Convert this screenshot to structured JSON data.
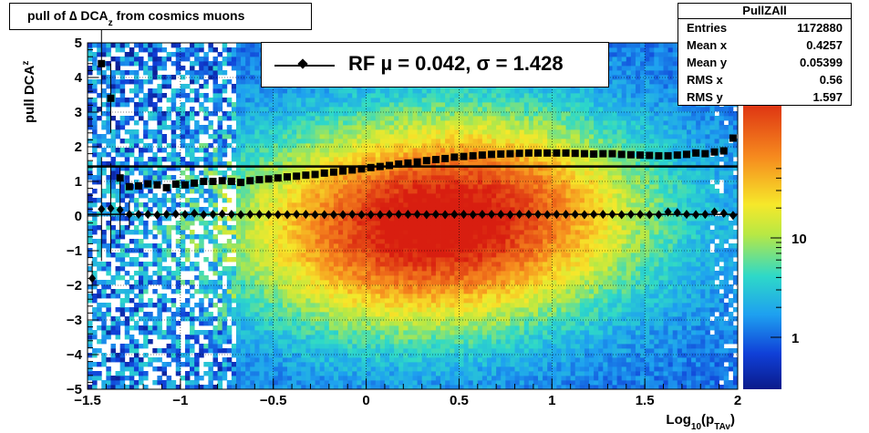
{
  "title": {
    "main": "pull of ∆ DCA",
    "sub": "z",
    "rest": " from cosmics muons"
  },
  "stats": {
    "name": "PullZAll",
    "rows": [
      {
        "label": "Entries",
        "value": "1172880"
      },
      {
        "label": "Mean x",
        "value": "0.4257"
      },
      {
        "label": "Mean y",
        "value": "0.05399"
      },
      {
        "label": "RMS x",
        "value": "0.56"
      },
      {
        "label": "RMS y",
        "value": "1.597"
      }
    ]
  },
  "legend": {
    "text": "RF µ =  0.042, σ =   1.428"
  },
  "xlabel": {
    "pre": "Log",
    "sub1": "10",
    "mid": "(p",
    "sub2": "TAv",
    "post": ")"
  },
  "ylabel": {
    "pre": "pull DCA",
    "sub": "z"
  },
  "chart_data": {
    "type": "heatmap",
    "xlim": [
      -1.5,
      2
    ],
    "ylim": [
      -5,
      5
    ],
    "xticks": [
      "−1.5",
      "−1",
      "−0.5",
      "0",
      "0.5",
      "1",
      "1.5",
      "2"
    ],
    "xtick_values": [
      -1.5,
      -1,
      -0.5,
      0,
      0.5,
      1,
      1.5,
      2
    ],
    "yticks": [
      "−5",
      "−4",
      "−3",
      "−2",
      "−1",
      "0",
      "1",
      "2",
      "3",
      "4",
      "5"
    ],
    "ytick_values": [
      -5,
      -4,
      -3,
      -2,
      -1,
      0,
      1,
      2,
      3,
      4,
      5
    ],
    "z_scale": "log",
    "zticks": [
      "1",
      "10"
    ],
    "ztick_values": [
      1,
      10
    ],
    "grid": true,
    "reference_line_y": 1.43,
    "series": [
      {
        "name": "mean",
        "marker": "diamond",
        "x": [
          -1.475,
          -1.425,
          -1.375,
          -1.325,
          -1.275,
          -1.225,
          -1.175,
          -1.125,
          -1.075,
          -1.025,
          -0.975,
          -0.925,
          -0.875,
          -0.825,
          -0.775,
          -0.725,
          -0.675,
          -0.625,
          -0.575,
          -0.525,
          -0.475,
          -0.425,
          -0.375,
          -0.325,
          -0.275,
          -0.225,
          -0.175,
          -0.125,
          -0.075,
          -0.025,
          0.025,
          0.075,
          0.125,
          0.175,
          0.225,
          0.275,
          0.325,
          0.375,
          0.425,
          0.475,
          0.525,
          0.575,
          0.625,
          0.675,
          0.725,
          0.775,
          0.825,
          0.875,
          0.925,
          0.975,
          1.025,
          1.075,
          1.125,
          1.175,
          1.225,
          1.275,
          1.325,
          1.375,
          1.425,
          1.475,
          1.525,
          1.575,
          1.625,
          1.675,
          1.725,
          1.775,
          1.825,
          1.875,
          1.925,
          1.975
        ],
        "y": [
          -1.8,
          0.2,
          0.22,
          0.18,
          0.05,
          0.05,
          0.05,
          0.03,
          0.05,
          0.06,
          0.05,
          0.08,
          0.04,
          0.05,
          0.06,
          0.05,
          0.04,
          0.05,
          0.05,
          0.04,
          0.04,
          0.04,
          0.05,
          0.05,
          0.04,
          0.04,
          0.04,
          0.04,
          0.05,
          0.04,
          0.04,
          0.04,
          0.05,
          0.05,
          0.05,
          0.05,
          0.04,
          0.05,
          0.04,
          0.05,
          0.05,
          0.04,
          0.05,
          0.05,
          0.05,
          0.04,
          0.05,
          0.05,
          0.05,
          0.04,
          0.05,
          0.05,
          0.05,
          0.04,
          0.05,
          0.05,
          0.05,
          0.04,
          0.05,
          0.05,
          0.04,
          0.04,
          0.12,
          0.1,
          0.05,
          0.04,
          0.05,
          0.12,
          0.08,
          0.02
        ],
        "yerr": [
          0.5,
          1.5,
          1.3,
          0.8,
          0.4,
          0.1,
          0.05,
          0.03,
          0.03,
          0.02,
          0.02,
          0.02,
          0.02,
          0.02,
          0.02,
          0.02,
          0.02,
          0.02,
          0.02,
          0.02,
          0.02,
          0.02,
          0.02,
          0.02,
          0.02,
          0.02,
          0.02,
          0.02,
          0.02,
          0.02,
          0.02,
          0.02,
          0.02,
          0.02,
          0.02,
          0.02,
          0.02,
          0.02,
          0.02,
          0.02,
          0.02,
          0.02,
          0.02,
          0.02,
          0.02,
          0.02,
          0.02,
          0.02,
          0.02,
          0.02,
          0.02,
          0.02,
          0.02,
          0.02,
          0.02,
          0.02,
          0.02,
          0.02,
          0.02,
          0.02,
          0.02,
          0.02,
          0.02,
          0.02,
          0.02,
          0.02,
          0.02,
          0.02,
          0.02,
          0.02
        ]
      },
      {
        "name": "sigma",
        "marker": "square",
        "x": [
          -1.425,
          -1.375,
          -1.325,
          -1.275,
          -1.225,
          -1.175,
          -1.125,
          -1.075,
          -1.025,
          -0.975,
          -0.925,
          -0.875,
          -0.825,
          -0.775,
          -0.725,
          -0.675,
          -0.625,
          -0.575,
          -0.525,
          -0.475,
          -0.425,
          -0.375,
          -0.325,
          -0.275,
          -0.225,
          -0.175,
          -0.125,
          -0.075,
          -0.025,
          0.025,
          0.075,
          0.125,
          0.175,
          0.225,
          0.275,
          0.325,
          0.375,
          0.425,
          0.475,
          0.525,
          0.575,
          0.625,
          0.675,
          0.725,
          0.775,
          0.825,
          0.875,
          0.925,
          0.975,
          1.025,
          1.075,
          1.125,
          1.175,
          1.225,
          1.275,
          1.325,
          1.375,
          1.425,
          1.475,
          1.525,
          1.575,
          1.625,
          1.675,
          1.725,
          1.775,
          1.825,
          1.875,
          1.925,
          1.975
        ],
        "y": [
          4.4,
          3.4,
          1.1,
          0.85,
          0.87,
          0.93,
          0.9,
          0.82,
          0.92,
          0.9,
          0.95,
          1.0,
          1.0,
          1.02,
          1.0,
          0.97,
          1.02,
          1.05,
          1.07,
          1.1,
          1.13,
          1.15,
          1.18,
          1.2,
          1.24,
          1.27,
          1.3,
          1.33,
          1.36,
          1.4,
          1.43,
          1.46,
          1.5,
          1.53,
          1.56,
          1.6,
          1.63,
          1.66,
          1.7,
          1.72,
          1.74,
          1.76,
          1.78,
          1.79,
          1.8,
          1.81,
          1.82,
          1.82,
          1.82,
          1.82,
          1.82,
          1.81,
          1.8,
          1.79,
          1.8,
          1.8,
          1.78,
          1.77,
          1.76,
          1.75,
          1.74,
          1.74,
          1.76,
          1.78,
          1.82,
          1.8,
          1.85,
          1.88,
          2.25
        ],
        "yerr": [
          1.5,
          1.0,
          0.3,
          0.1,
          0.05,
          0.03,
          0.03,
          0.02,
          0.02,
          0.02,
          0.02,
          0.02,
          0.02,
          0.02,
          0.02,
          0.02,
          0.02,
          0.02,
          0.02,
          0.02,
          0.02,
          0.02,
          0.02,
          0.02,
          0.02,
          0.02,
          0.02,
          0.02,
          0.02,
          0.02,
          0.02,
          0.02,
          0.02,
          0.02,
          0.02,
          0.02,
          0.02,
          0.02,
          0.02,
          0.02,
          0.02,
          0.02,
          0.02,
          0.02,
          0.02,
          0.02,
          0.02,
          0.02,
          0.02,
          0.02,
          0.02,
          0.02,
          0.02,
          0.02,
          0.02,
          0.02,
          0.02,
          0.02,
          0.02,
          0.02,
          0.02,
          0.02,
          0.02,
          0.02,
          0.02,
          0.02,
          0.02,
          0.02,
          0.02
        ]
      }
    ]
  }
}
